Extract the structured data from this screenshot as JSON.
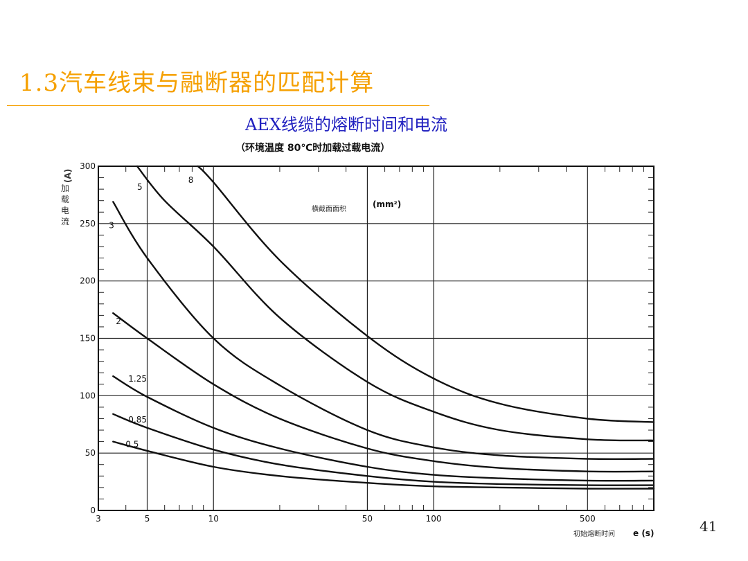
{
  "slide": {
    "title": "1.3汽车线束与融断器的匹配计算",
    "page_number": "41"
  },
  "chart_data": {
    "type": "line",
    "title": "AEX线缆的熔断时间和电流",
    "subtitle": "（环境温度 80℃时加载过载电流）",
    "xlabel": "初始熔断时间",
    "xunit": "e (s)",
    "ylabel_unit": "(A)",
    "ylabel": "加载电流",
    "legend_title": "横截面面积",
    "legend_unit": "(mm²)",
    "x_scale": "log",
    "xlim": [
      3,
      1000
    ],
    "ylim": [
      0,
      300
    ],
    "grid": true,
    "x_ticks": [
      "3",
      "5",
      "10",
      "50",
      "100",
      "500"
    ],
    "y_ticks": [
      "0",
      "50",
      "100",
      "150",
      "200",
      "250",
      "300"
    ],
    "series": [
      {
        "name": "0.5",
        "x": [
          3.5,
          5,
          10,
          20,
          50,
          100,
          200,
          500,
          1000
        ],
        "y": [
          60,
          52,
          38,
          30,
          24,
          21,
          20,
          19,
          19
        ]
      },
      {
        "name": "0.85",
        "x": [
          3.5,
          5,
          10,
          20,
          50,
          100,
          200,
          500,
          1000
        ],
        "y": [
          84,
          72,
          53,
          40,
          30,
          25,
          23,
          22,
          22
        ]
      },
      {
        "name": "1.25",
        "x": [
          3.5,
          5,
          10,
          20,
          50,
          100,
          200,
          500,
          1000
        ],
        "y": [
          117,
          99,
          72,
          54,
          38,
          31,
          28,
          26,
          26
        ]
      },
      {
        "name": "2",
        "x": [
          3.5,
          5,
          10,
          20,
          50,
          100,
          200,
          500,
          1000
        ],
        "y": [
          172,
          150,
          110,
          80,
          54,
          43,
          37,
          34,
          34
        ]
      },
      {
        "name": "3",
        "x": [
          3.5,
          5,
          10,
          20,
          50,
          100,
          200,
          500,
          1000
        ],
        "y": [
          269,
          220,
          150,
          109,
          70,
          55,
          48,
          45,
          45
        ]
      },
      {
        "name": "5",
        "x": [
          4.5,
          6,
          10,
          20,
          50,
          100,
          200,
          500,
          1000
        ],
        "y": [
          300,
          270,
          230,
          168,
          112,
          86,
          70,
          62,
          61
        ]
      },
      {
        "name": "8",
        "x": [
          8.5,
          10,
          20,
          50,
          100,
          200,
          500,
          1000
        ],
        "y": [
          300,
          286,
          218,
          152,
          115,
          93,
          80,
          77
        ]
      }
    ]
  }
}
